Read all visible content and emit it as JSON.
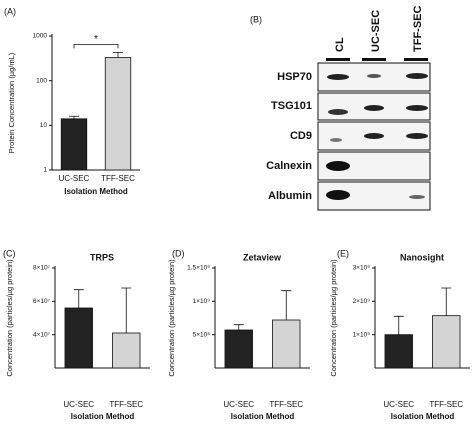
{
  "chart_data": [
    {
      "type": "bar",
      "panel_label": "(A)",
      "y_label": "Protein Concentration (µg/mL)",
      "x_label": "Isolation Method",
      "categories": [
        "UC-SEC",
        "TFF-SEC"
      ],
      "values": [
        14,
        330
      ],
      "errors": [
        2,
        100
      ],
      "colors": [
        "#222222",
        "#d4d4d4"
      ],
      "log_scale": true,
      "ylim": [
        1,
        1000
      ],
      "yticks": [
        1,
        10,
        100,
        1000
      ],
      "annotation": "*"
    },
    {
      "type": "bar",
      "panel_label": "(C)",
      "title": "TRPS",
      "y_label": "Concentration (particles/µg protein)",
      "x_label": "Isolation Method",
      "categories": [
        "UC-SEC",
        "TFF-SEC"
      ],
      "values": [
        56000000,
        41000000
      ],
      "errors": [
        11000000,
        27000000
      ],
      "colors": [
        "#222222",
        "#d4d4d4"
      ],
      "ylim": [
        20000000,
        80000000
      ],
      "yticks": [
        {
          "value": 40000000,
          "label": "4×10⁷"
        },
        {
          "value": 60000000,
          "label": "6×10⁷"
        },
        {
          "value": 80000000,
          "label": "8×10⁷"
        }
      ]
    },
    {
      "type": "bar",
      "panel_label": "(D)",
      "title": "Zetaview",
      "y_label": "Concentration (particles/µg protein)",
      "x_label": "Isolation Method",
      "categories": [
        "UC-SEC",
        "TFF-SEC"
      ],
      "values": [
        570000000,
        720000000
      ],
      "errors": [
        80000000,
        440000000
      ],
      "colors": [
        "#222222",
        "#d4d4d4"
      ],
      "ylim": [
        0,
        1500000000
      ],
      "yticks": [
        {
          "value": 500000000,
          "label": "5×10⁸"
        },
        {
          "value": 1000000000,
          "label": "1×10⁹"
        },
        {
          "value": 1500000000,
          "label": "1.5×10⁹"
        }
      ]
    },
    {
      "type": "bar",
      "panel_label": "(E)",
      "title": "Nanosight",
      "y_label": "Concentration (particles/µg protein)",
      "x_label": "Isolation Method",
      "categories": [
        "UC-SEC",
        "TFF-SEC"
      ],
      "values": [
        1000000000,
        1570000000
      ],
      "errors": [
        550000000,
        830000000
      ],
      "colors": [
        "#222222",
        "#d4d4d4"
      ],
      "ylim": [
        0,
        3000000000
      ],
      "yticks": [
        {
          "value": 1000000000,
          "label": "1×10⁹"
        },
        {
          "value": 2000000000,
          "label": "2×10⁹"
        },
        {
          "value": 3000000000,
          "label": "3×10⁹"
        }
      ]
    }
  ],
  "blot": {
    "panel_label": "(B)",
    "lanes": [
      "CL",
      "UC-SEC",
      "TFF-SEC"
    ],
    "rows": [
      "HSP70",
      "TSG101",
      "CD9",
      "Calnexin",
      "Albumin"
    ]
  }
}
